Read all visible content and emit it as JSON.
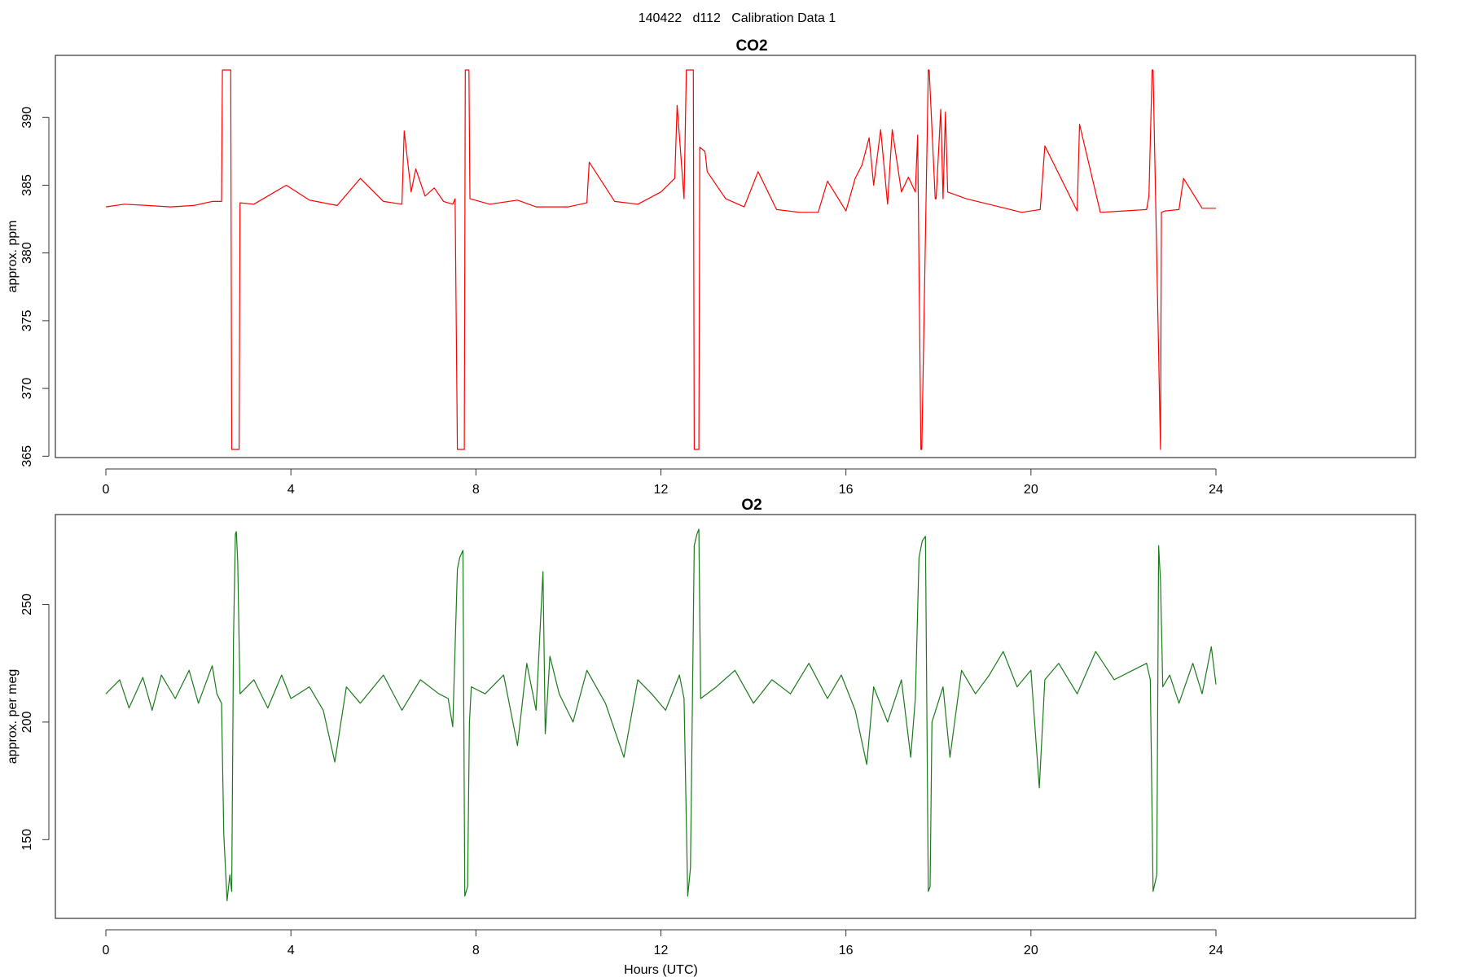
{
  "figure": {
    "title": "140422   d112   Calibration Data 1"
  },
  "chart_data": [
    {
      "type": "line",
      "title": "CO2",
      "xlabel": "",
      "ylabel": "approx. ppm",
      "xlim": [
        0,
        24
      ],
      "ylim": [
        365.5,
        393.5
      ],
      "x_ticks": [
        0,
        4,
        8,
        12,
        16,
        20,
        24
      ],
      "y_ticks": [
        365,
        370,
        375,
        380,
        385,
        390
      ],
      "grid": false,
      "series": [
        {
          "color": "#ff0000",
          "x": [
            0.0,
            0.4,
            0.9,
            1.4,
            1.9,
            2.3,
            2.5,
            2.52,
            2.7,
            2.72,
            2.88,
            2.9,
            3.2,
            3.9,
            4.4,
            5.0,
            5.5,
            6.0,
            6.4,
            6.45,
            6.6,
            6.7,
            6.9,
            7.1,
            7.3,
            7.5,
            7.55,
            7.6,
            7.75,
            7.77,
            7.85,
            7.87,
            8.3,
            8.9,
            9.3,
            10.0,
            10.4,
            10.45,
            11.0,
            11.5,
            12.0,
            12.3,
            12.35,
            12.5,
            12.55,
            12.6,
            12.7,
            12.72,
            12.82,
            12.84,
            12.95,
            12.97,
            13.0,
            13.4,
            13.8,
            14.1,
            14.5,
            15.0,
            15.4,
            15.6,
            16.0,
            16.2,
            16.35,
            16.5,
            16.6,
            16.75,
            16.9,
            17.0,
            17.2,
            17.35,
            17.5,
            17.55,
            17.62,
            17.64,
            17.78,
            17.8,
            17.93,
            17.95,
            18.05,
            18.1,
            18.15,
            18.2,
            18.6,
            19.2,
            19.8,
            20.2,
            20.3,
            21.0,
            21.05,
            21.5,
            22.0,
            22.5,
            22.55,
            22.62,
            22.64,
            22.8,
            22.82,
            22.9,
            23.2,
            23.3,
            23.7,
            24.0
          ],
          "y": [
            383.4,
            383.6,
            383.5,
            383.4,
            383.5,
            383.8,
            383.8,
            393.5,
            393.5,
            365.5,
            365.5,
            383.7,
            383.6,
            385.0,
            383.9,
            383.5,
            385.5,
            383.8,
            383.6,
            389.0,
            384.5,
            386.2,
            384.2,
            384.8,
            383.8,
            383.6,
            384.0,
            365.5,
            365.5,
            393.5,
            393.5,
            384.0,
            383.6,
            383.9,
            383.4,
            383.4,
            383.7,
            386.7,
            383.8,
            383.6,
            384.5,
            385.5,
            390.9,
            384.0,
            393.5,
            393.5,
            393.5,
            365.5,
            365.5,
            387.8,
            387.5,
            387.0,
            386.0,
            384.0,
            383.4,
            386.0,
            383.2,
            383.0,
            383.0,
            385.3,
            383.1,
            385.5,
            386.5,
            388.5,
            385.0,
            389.1,
            383.6,
            389.1,
            384.5,
            385.6,
            384.5,
            388.7,
            365.5,
            365.5,
            393.5,
            393.5,
            384.0,
            384.0,
            390.6,
            384.0,
            390.4,
            384.5,
            384.0,
            383.5,
            383.0,
            383.2,
            387.9,
            383.1,
            389.5,
            383.0,
            383.1,
            383.2,
            384.2,
            393.5,
            393.5,
            365.5,
            383.0,
            383.1,
            383.2,
            385.5,
            383.3,
            383.3
          ]
        }
      ]
    },
    {
      "type": "line",
      "title": "O2",
      "xlabel": "Hours (UTC)",
      "ylabel": "approx. per meg",
      "xlim": [
        0,
        24
      ],
      "ylim": [
        120,
        282
      ],
      "x_ticks": [
        0,
        4,
        8,
        12,
        16,
        20,
        24
      ],
      "y_ticks": [
        150,
        200,
        250
      ],
      "grid": false,
      "series": [
        {
          "color": "#1b7a1b",
          "x": [
            0.0,
            0.3,
            0.5,
            0.8,
            1.0,
            1.2,
            1.5,
            1.8,
            2.0,
            2.3,
            2.4,
            2.5,
            2.55,
            2.62,
            2.68,
            2.72,
            2.76,
            2.8,
            2.82,
            2.85,
            2.9,
            3.2,
            3.5,
            3.8,
            4.0,
            4.4,
            4.7,
            4.95,
            5.2,
            5.5,
            6.0,
            6.4,
            6.8,
            7.2,
            7.4,
            7.5,
            7.53,
            7.6,
            7.65,
            7.72,
            7.76,
            7.82,
            7.86,
            7.9,
            8.2,
            8.6,
            8.9,
            9.1,
            9.3,
            9.45,
            9.5,
            9.6,
            9.8,
            10.1,
            10.4,
            10.8,
            11.2,
            11.5,
            11.8,
            12.1,
            12.4,
            12.5,
            12.58,
            12.64,
            12.72,
            12.78,
            12.82,
            12.86,
            13.2,
            13.6,
            14.0,
            14.4,
            14.8,
            15.2,
            15.6,
            15.9,
            16.2,
            16.45,
            16.6,
            16.9,
            17.2,
            17.4,
            17.5,
            17.58,
            17.65,
            17.72,
            17.78,
            17.82,
            17.86,
            18.1,
            18.25,
            18.5,
            18.8,
            19.1,
            19.4,
            19.7,
            20.0,
            20.18,
            20.3,
            20.6,
            21.0,
            21.4,
            21.8,
            22.2,
            22.5,
            22.58,
            22.64,
            22.72,
            22.76,
            22.8,
            22.85,
            23.0,
            23.2,
            23.5,
            23.7,
            23.9,
            24.0
          ],
          "y": [
            212,
            218,
            206,
            219,
            205,
            220,
            210,
            222,
            208,
            224,
            212,
            208,
            152,
            124,
            135,
            128,
            235,
            280,
            281,
            268,
            212,
            218,
            206,
            220,
            210,
            215,
            205,
            183,
            215,
            208,
            220,
            205,
            218,
            212,
            210,
            198,
            218,
            265,
            270,
            273,
            126,
            130,
            200,
            215,
            212,
            220,
            190,
            225,
            205,
            264,
            195,
            228,
            212,
            200,
            222,
            208,
            185,
            218,
            212,
            205,
            220,
            210,
            126,
            138,
            275,
            280,
            282,
            210,
            215,
            222,
            208,
            218,
            212,
            225,
            210,
            220,
            205,
            182,
            215,
            200,
            218,
            185,
            210,
            270,
            277,
            279,
            128,
            130,
            200,
            215,
            185,
            222,
            212,
            220,
            230,
            215,
            222,
            172,
            218,
            225,
            212,
            230,
            218,
            222,
            225,
            218,
            128,
            135,
            275,
            260,
            215,
            220,
            208,
            225,
            212,
            232,
            216
          ]
        }
      ]
    }
  ]
}
